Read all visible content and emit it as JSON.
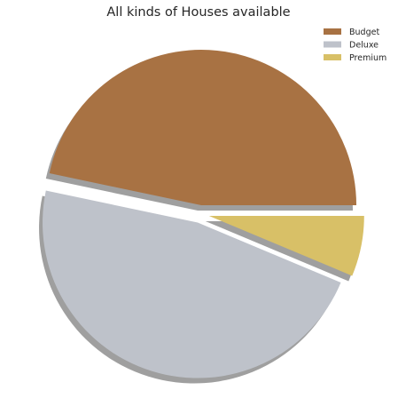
{
  "chart_data": {
    "type": "pie",
    "title": "All kinds of Houses available",
    "legend_position": "top-right",
    "shadow": true,
    "exploded": true,
    "slices": [
      {
        "label": "Budget",
        "value": 46.7,
        "color": "#a87243"
      },
      {
        "label": "Deluxe",
        "value": 47.0,
        "color": "#bec2ca"
      },
      {
        "label": "Premium",
        "value": 6.3,
        "color": "#d8c067"
      }
    ]
  }
}
